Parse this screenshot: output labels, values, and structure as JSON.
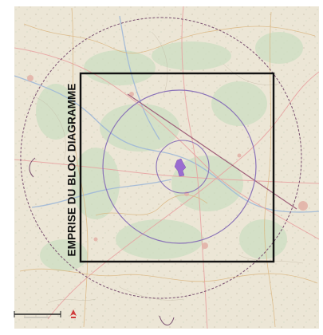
{
  "map": {
    "block_label": "EMPRISE DU BLOC DIAGRAMME",
    "scale_bar_label": "",
    "colors": {
      "background": "#ece6d6",
      "outer_circle": "#7a5070",
      "inner_circles": "#8a72b8",
      "diagonal_line": "#a0607a",
      "block_frame": "#111111",
      "site_marker": "#9a6cd0",
      "north_arrow": "#d03a3a"
    },
    "icons": {
      "north_arrow": "north-arrow-icon",
      "site_marker": "site-marker-icon"
    }
  }
}
